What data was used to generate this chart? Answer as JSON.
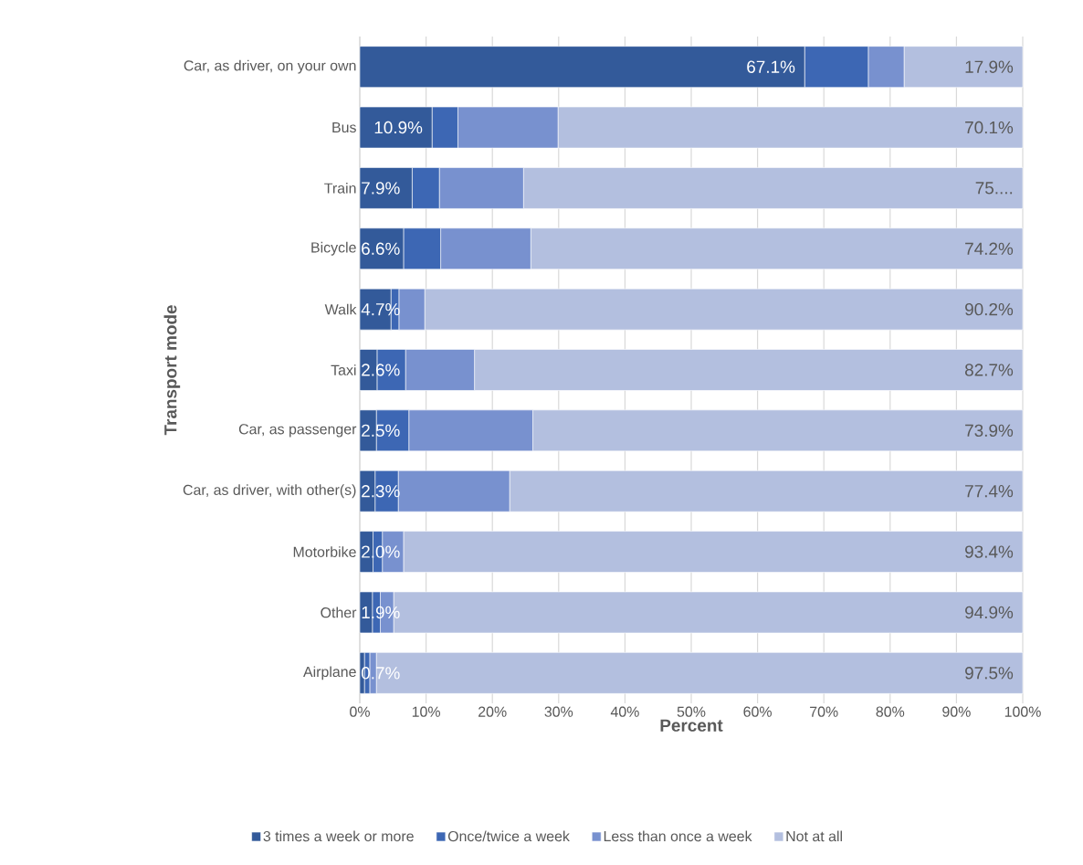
{
  "chart_data": {
    "type": "bar",
    "orientation": "horizontal",
    "stacked": true,
    "ylabel": "Transport mode",
    "xlabel": "Percent",
    "categories": [
      "Car, as driver, on your own",
      "Bus",
      "Train",
      "Bicycle",
      "Walk",
      "Taxi",
      "Car, as passenger",
      "Car, as driver, with other(s)",
      "Motorbike",
      "Other",
      "Airplane"
    ],
    "series": [
      {
        "name": "3 times a week or more",
        "color": "#335a9a",
        "values": [
          67.1,
          10.9,
          7.9,
          6.6,
          4.7,
          2.6,
          2.5,
          2.3,
          2.0,
          1.9,
          0.7
        ],
        "value_labels": [
          "67.1%",
          "10.9%",
          "7.9%",
          "6.6%",
          "4.7%",
          "2.6%",
          "2.5%",
          "2.3%",
          "2.0%",
          "1.9%",
          "0.7%"
        ]
      },
      {
        "name": "Once/twice a week",
        "color": "#3d67b4",
        "values": [
          9.6,
          3.9,
          4.1,
          5.6,
          1.2,
          4.3,
          4.9,
          3.5,
          1.4,
          1.2,
          0.8
        ]
      },
      {
        "name": "Less than once a week",
        "color": "#7891cf",
        "values": [
          5.4,
          15.1,
          12.7,
          13.6,
          3.9,
          10.4,
          18.7,
          16.8,
          3.2,
          2.0,
          1.0
        ]
      },
      {
        "name": "Not at all",
        "color": "#b3bfdf",
        "values": [
          17.9,
          70.1,
          75.3,
          74.2,
          90.2,
          82.7,
          73.9,
          77.4,
          93.4,
          94.9,
          97.5
        ],
        "value_labels": [
          "17.9%",
          "70.1%",
          "75....",
          "74.2%",
          "90.2%",
          "82.7%",
          "73.9%",
          "77.4%",
          "93.4%",
          "94.9%",
          "97.5%"
        ]
      }
    ],
    "xlim": [
      0,
      100
    ],
    "xticks": [
      {
        "value": 0,
        "label": "0%"
      },
      {
        "value": 10,
        "label": "10%"
      },
      {
        "value": 20,
        "label": "20%"
      },
      {
        "value": 30,
        "label": "30%"
      },
      {
        "value": 40,
        "label": "40%"
      },
      {
        "value": 50,
        "label": "50%"
      },
      {
        "value": 60,
        "label": "60%"
      },
      {
        "value": 70,
        "label": "70%"
      },
      {
        "value": 80,
        "label": "80%"
      },
      {
        "value": 90,
        "label": "90%"
      },
      {
        "value": 100,
        "label": "100%"
      }
    ],
    "grid": "x",
    "legend": "bottom"
  }
}
